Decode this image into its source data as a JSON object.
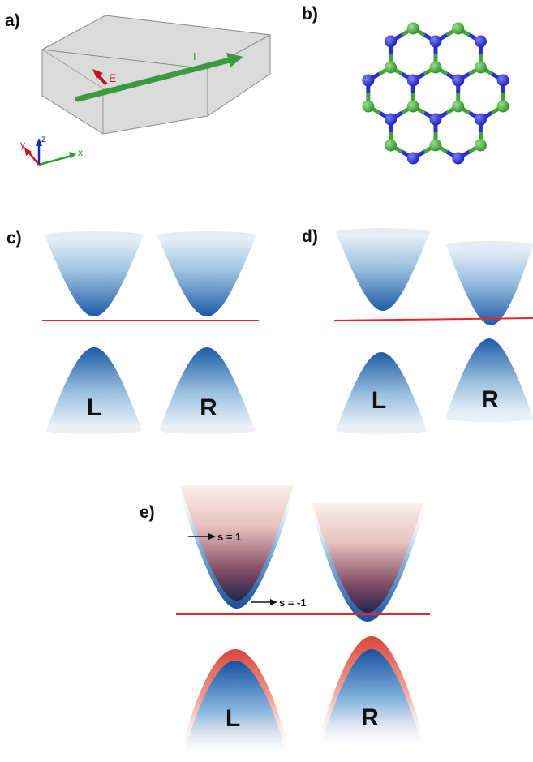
{
  "panels": {
    "a": {
      "label": "a)",
      "e_label": "E",
      "i_label": "I",
      "axes": {
        "x": "x",
        "y": "y",
        "z": "z"
      }
    },
    "b": {
      "label": "b)"
    },
    "c": {
      "label": "c)",
      "valleys": [
        "L",
        "R"
      ]
    },
    "d": {
      "label": "d)",
      "valleys": [
        "L",
        "R"
      ]
    },
    "e": {
      "label": "e)",
      "valleys": [
        "L",
        "R"
      ],
      "spin_up": "s = 1",
      "spin_down": "s = -1"
    }
  },
  "colors": {
    "lattice_green": "#3fa535",
    "lattice_blue": "#2a2ed8",
    "fermi_line": "#e8262a",
    "current_arrow": "#3b9a3b",
    "field_arrow": "#c0141c",
    "band_blue": "#1e5ea8",
    "band_red": "#e86050"
  }
}
